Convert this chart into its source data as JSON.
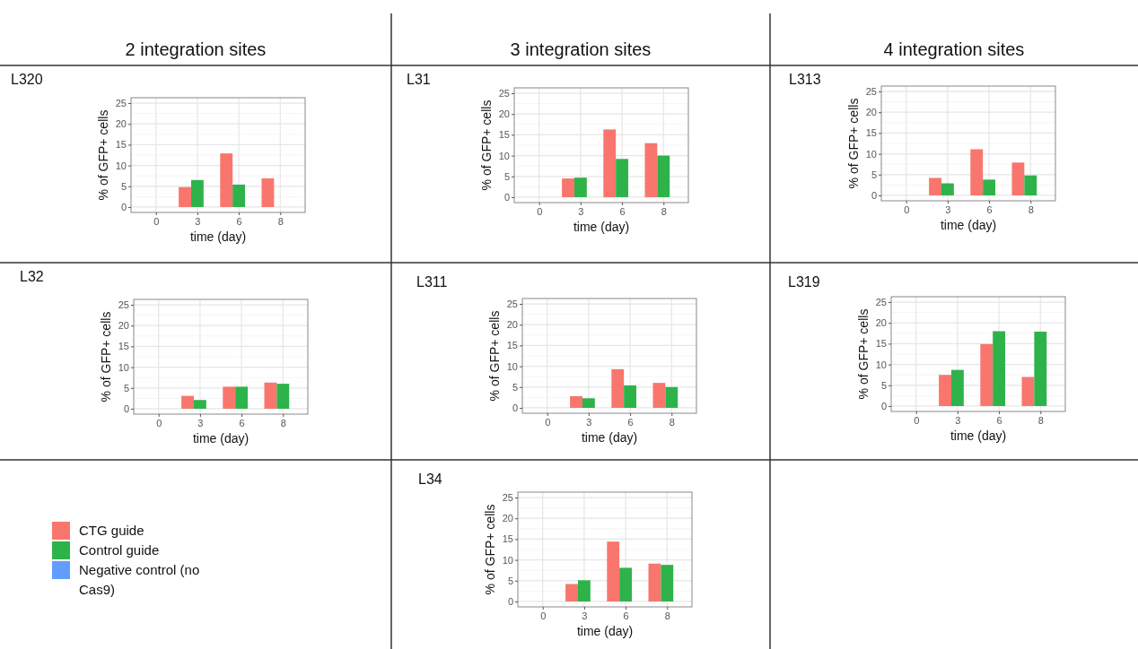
{
  "chart_data": [
    {
      "type": "bar",
      "title": "L320",
      "annotations": [
        "2 integration sites"
      ],
      "xlabel": "time (day)",
      "ylabel": "% of GFP+ cells",
      "categories": [
        "0",
        "3",
        "6",
        "8"
      ],
      "ylim": [
        -1.3,
        26.3
      ],
      "yticks": [
        0,
        5,
        10,
        15,
        20,
        25
      ],
      "grid": true,
      "series": [
        {
          "color": "#f8766d",
          "values": [
            null,
            4.8,
            12.9,
            6.9
          ]
        },
        {
          "color": "#2db34a",
          "values": [
            null,
            6.5,
            5.4,
            null
          ]
        }
      ]
    },
    {
      "type": "bar",
      "title": "L31",
      "annotations": [
        "3 integration sites"
      ],
      "xlabel": "time (day)",
      "ylabel": "% of GFP+ cells",
      "categories": [
        "0",
        "3",
        "6",
        "8"
      ],
      "ylim": [
        -1.3,
        26.3
      ],
      "yticks": [
        0,
        5,
        10,
        15,
        20,
        25
      ],
      "grid": true,
      "series": [
        {
          "color": "#f8766d",
          "values": [
            null,
            4.5,
            16.3,
            13.0
          ]
        },
        {
          "color": "#2db34a",
          "values": [
            null,
            4.7,
            9.2,
            10.0
          ]
        }
      ]
    },
    {
      "type": "bar",
      "title": "L313",
      "annotations": [
        "4 integration sites"
      ],
      "xlabel": "time (day)",
      "ylabel": "% of GFP+ cells",
      "categories": [
        "0",
        "3",
        "6",
        "8"
      ],
      "ylim": [
        -1.3,
        26.3
      ],
      "yticks": [
        0,
        5,
        10,
        15,
        20,
        25
      ],
      "grid": true,
      "series": [
        {
          "color": "#f8766d",
          "values": [
            null,
            4.2,
            11.1,
            7.9
          ]
        },
        {
          "color": "#2db34a",
          "values": [
            null,
            2.9,
            3.8,
            4.8
          ]
        }
      ]
    },
    {
      "type": "bar",
      "title": "L32",
      "xlabel": "time (day)",
      "ylabel": "% of GFP+ cells",
      "categories": [
        "0",
        "3",
        "6",
        "8"
      ],
      "ylim": [
        -1.3,
        26.3
      ],
      "yticks": [
        0,
        5,
        10,
        15,
        20,
        25
      ],
      "grid": true,
      "series": [
        {
          "color": "#f8766d",
          "values": [
            null,
            3.1,
            5.3,
            6.3
          ]
        },
        {
          "color": "#2db34a",
          "values": [
            null,
            2.1,
            5.3,
            6.0
          ]
        }
      ]
    },
    {
      "type": "bar",
      "title": "L311",
      "xlabel": "time (day)",
      "ylabel": "% of GFP+ cells",
      "categories": [
        "0",
        "3",
        "6",
        "8"
      ],
      "ylim": [
        -1.3,
        26.3
      ],
      "yticks": [
        0,
        5,
        10,
        15,
        20,
        25
      ],
      "grid": true,
      "series": [
        {
          "color": "#f8766d",
          "values": [
            null,
            2.8,
            9.3,
            6.0
          ]
        },
        {
          "color": "#2db34a",
          "values": [
            null,
            2.3,
            5.4,
            5.0
          ]
        }
      ]
    },
    {
      "type": "bar",
      "title": "L319",
      "xlabel": "time (day)",
      "ylabel": "% of GFP+ cells",
      "categories": [
        "0",
        "3",
        "6",
        "8"
      ],
      "ylim": [
        -1.3,
        26.3
      ],
      "yticks": [
        0,
        5,
        10,
        15,
        20,
        25
      ],
      "grid": true,
      "series": [
        {
          "color": "#f8766d",
          "values": [
            null,
            7.5,
            14.9,
            7.0
          ]
        },
        {
          "color": "#2db34a",
          "values": [
            null,
            8.7,
            18.0,
            17.9
          ]
        }
      ]
    },
    {
      "type": "bar",
      "title": "L34",
      "legend": "left",
      "xlabel": "time (day)",
      "ylabel": "% of GFP+ cells",
      "categories": [
        "0",
        "3",
        "6",
        "8"
      ],
      "ylim": [
        -1.3,
        26.3
      ],
      "yticks": [
        0,
        5,
        10,
        15,
        20,
        25
      ],
      "grid": true,
      "series": [
        {
          "name": "CTG guide",
          "color": "#f8766d",
          "values": [
            null,
            4.2,
            14.4,
            9.1
          ]
        },
        {
          "name": "Control guide",
          "color": "#2db34a",
          "values": [
            null,
            5.1,
            8.1,
            8.8
          ]
        },
        {
          "name": "Negative control (no Cas9)",
          "color": "#619cff",
          "values": [
            null,
            null,
            null,
            null
          ]
        }
      ]
    }
  ]
}
